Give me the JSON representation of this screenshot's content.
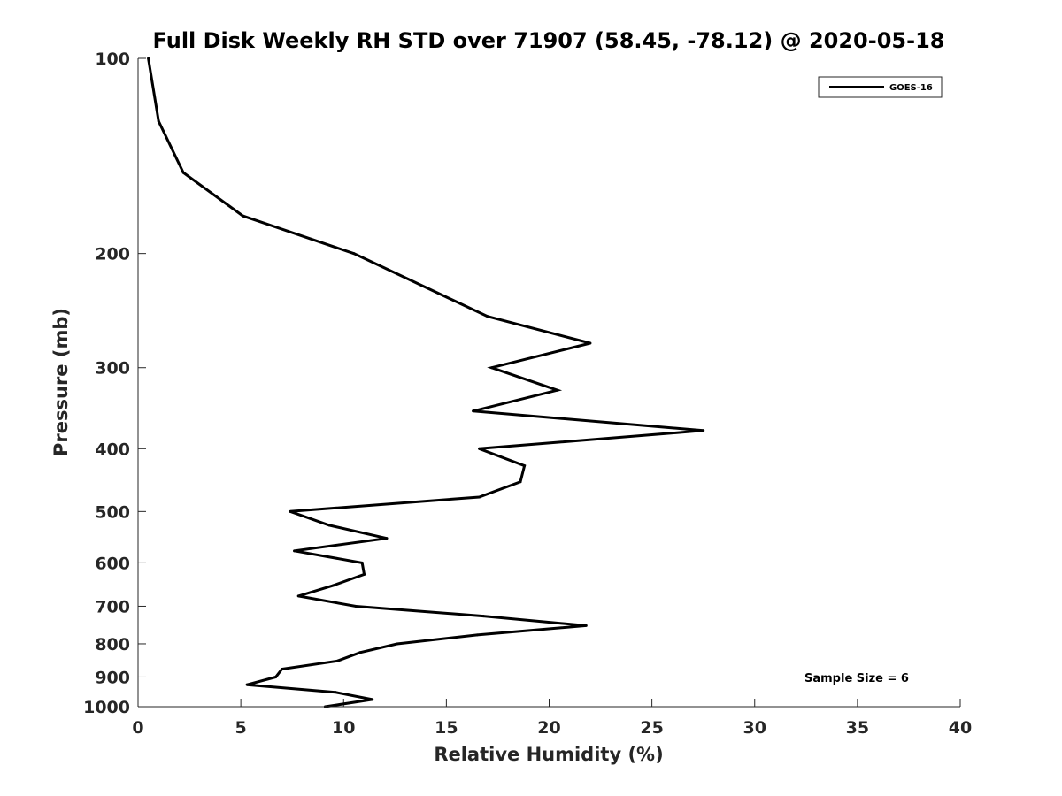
{
  "chart_data": {
    "type": "line",
    "title": "Full Disk Weekly RH STD over 71907 (58.45, -78.12) @ 2020-05-18",
    "xlabel": "Relative Humidity (%)",
    "ylabel": "Pressure (mb)",
    "xlim": [
      0,
      40
    ],
    "ylim": [
      100,
      1000
    ],
    "yscale": "log",
    "y_reversed": true,
    "x_ticks": [
      0,
      5,
      10,
      15,
      20,
      25,
      30,
      35,
      40
    ],
    "y_ticks": [
      100,
      200,
      300,
      400,
      500,
      600,
      700,
      800,
      900,
      1000
    ],
    "grid": false,
    "legend_position": "top-right",
    "series": [
      {
        "name": "GOES-16",
        "color": "#000000",
        "points": [
          {
            "x": 0.5,
            "y": 100
          },
          {
            "x": 1.0,
            "y": 125
          },
          {
            "x": 2.2,
            "y": 150
          },
          {
            "x": 5.1,
            "y": 175
          },
          {
            "x": 10.5,
            "y": 200
          },
          {
            "x": 17.0,
            "y": 250
          },
          {
            "x": 22.0,
            "y": 275
          },
          {
            "x": 17.2,
            "y": 300
          },
          {
            "x": 20.4,
            "y": 325
          },
          {
            "x": 16.3,
            "y": 350
          },
          {
            "x": 27.5,
            "y": 375
          },
          {
            "x": 16.6,
            "y": 400
          },
          {
            "x": 18.8,
            "y": 425
          },
          {
            "x": 18.6,
            "y": 450
          },
          {
            "x": 16.6,
            "y": 475
          },
          {
            "x": 7.4,
            "y": 500
          },
          {
            "x": 9.3,
            "y": 525
          },
          {
            "x": 12.1,
            "y": 550
          },
          {
            "x": 7.6,
            "y": 575
          },
          {
            "x": 10.9,
            "y": 600
          },
          {
            "x": 11.0,
            "y": 625
          },
          {
            "x": 9.5,
            "y": 650
          },
          {
            "x": 7.8,
            "y": 675
          },
          {
            "x": 10.6,
            "y": 700
          },
          {
            "x": 16.8,
            "y": 725
          },
          {
            "x": 21.8,
            "y": 750
          },
          {
            "x": 16.5,
            "y": 775
          },
          {
            "x": 12.6,
            "y": 800
          },
          {
            "x": 10.8,
            "y": 825
          },
          {
            "x": 9.7,
            "y": 850
          },
          {
            "x": 7.0,
            "y": 875
          },
          {
            "x": 6.7,
            "y": 900
          },
          {
            "x": 5.3,
            "y": 925
          },
          {
            "x": 9.6,
            "y": 950
          },
          {
            "x": 11.4,
            "y": 975
          },
          {
            "x": 9.1,
            "y": 1000
          }
        ]
      }
    ],
    "annotation": "Sample Size = 6"
  }
}
